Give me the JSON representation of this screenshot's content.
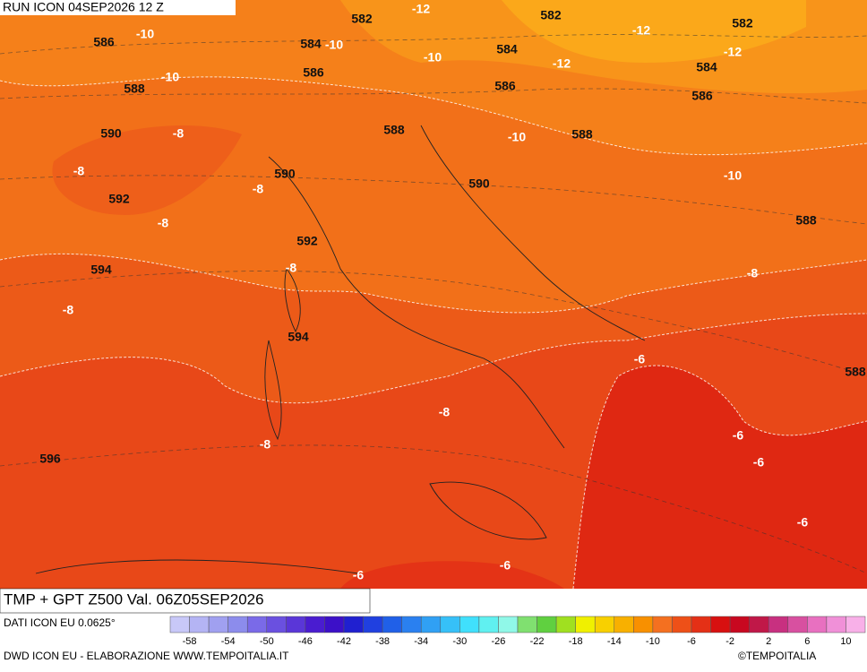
{
  "header": {
    "run": "RUN ICON 04SEP2026 12 Z"
  },
  "map": {
    "gpt_labels": [
      "582",
      "582",
      "582",
      "586",
      "584",
      "584",
      "584",
      "586",
      "588",
      "586",
      "586",
      "590",
      "588",
      "588",
      "590",
      "590",
      "592",
      "588",
      "592",
      "594",
      "594",
      "588",
      "596"
    ],
    "tmp_labels": [
      "-12",
      "-10",
      "-12",
      "-12",
      "-12",
      "-10",
      "-10",
      "-10",
      "-8",
      "-10",
      "-8",
      "-8",
      "-10",
      "-8",
      "-8",
      "-8",
      "-8",
      "-6",
      "-8",
      "-6",
      "-8",
      "-6",
      "-6",
      "-6",
      "-6"
    ]
  },
  "footer": {
    "title": "TMP + GPT Z500 Val. 06Z05SEP2026",
    "source": "DATI ICON EU 0.0625°",
    "credit": "DWD ICON EU - ELABORAZIONE WWW.TEMPOITALIA.IT",
    "copyright": "©TEMPOITALIA",
    "scale_labels": [
      "-58",
      "-54",
      "-50",
      "-46",
      "-42",
      "-38",
      "-34",
      "-30",
      "-26",
      "-22",
      "-18",
      "-14",
      "-10",
      "-6",
      "-2",
      "2",
      "6",
      "10"
    ]
  }
}
